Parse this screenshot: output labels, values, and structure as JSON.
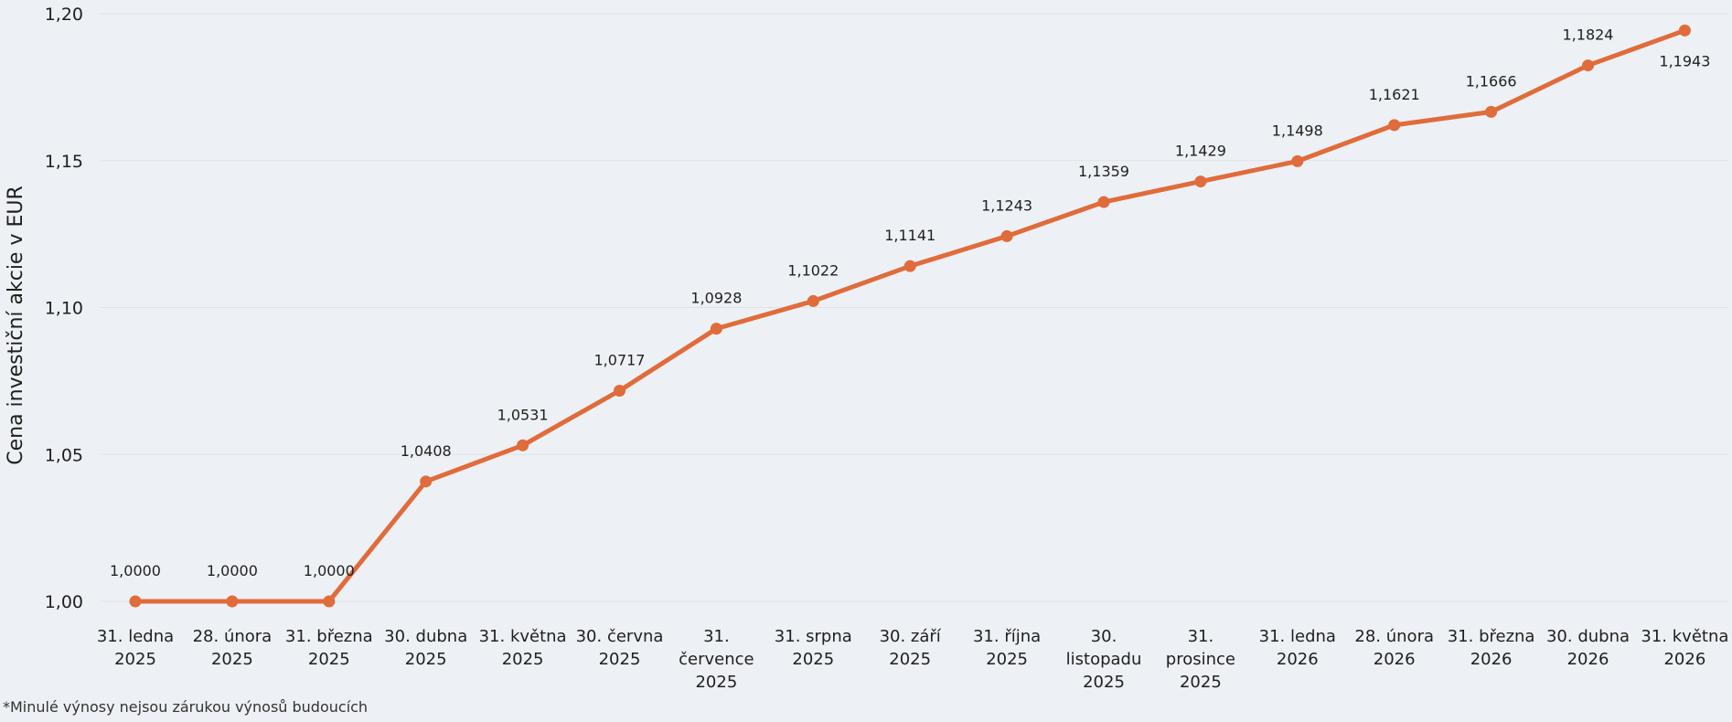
{
  "chart_data": {
    "type": "line",
    "title": "",
    "ylabel": "Cena investiční akcie v EUR",
    "xlabel": "",
    "ylim": [
      1.0,
      1.2
    ],
    "yticks": [
      "1,00",
      "1,05",
      "1,10",
      "1,15",
      "1,20"
    ],
    "yticks_values": [
      1.0,
      1.05,
      1.1,
      1.15,
      1.2
    ],
    "grid": true,
    "legend": "none",
    "categories": [
      "31. ledna 2025",
      "28. února 2025",
      "31. března 2025",
      "30. dubna 2025",
      "31. května 2025",
      "30. června 2025",
      "31. července 2025",
      "31. srpna 2025",
      "30. září 2025",
      "31. října 2025",
      "30. listopadu 2025",
      "31. prosince 2025",
      "31. ledna 2026",
      "28. února 2026",
      "31. března 2026",
      "30. dubna 2026",
      "31. května 2026"
    ],
    "category_lines": [
      [
        "31. ledna",
        "2025"
      ],
      [
        "28. února",
        "2025"
      ],
      [
        "31. března",
        "2025"
      ],
      [
        "30. dubna",
        "2025"
      ],
      [
        "31. května",
        "2025"
      ],
      [
        "30. června",
        "2025"
      ],
      [
        "31.",
        "července",
        "2025"
      ],
      [
        "31. srpna",
        "2025"
      ],
      [
        "30. září",
        "2025"
      ],
      [
        "31. října",
        "2025"
      ],
      [
        "30.",
        "listopadu",
        "2025"
      ],
      [
        "31.",
        "prosince",
        "2025"
      ],
      [
        "31. ledna",
        "2026"
      ],
      [
        "28. února",
        "2026"
      ],
      [
        "31. března",
        "2026"
      ],
      [
        "30. dubna",
        "2026"
      ],
      [
        "31. května",
        "2026"
      ]
    ],
    "series": [
      {
        "values": [
          1.0,
          1.0,
          1.0,
          1.0408,
          1.0531,
          1.0717,
          1.0928,
          1.1022,
          1.1141,
          1.1243,
          1.1359,
          1.1429,
          1.1498,
          1.1621,
          1.1666,
          1.1824,
          1.1943
        ],
        "labels": [
          "1,0000",
          "1,0000",
          "1,0000",
          "1,0408",
          "1,0531",
          "1,0717",
          "1,0928",
          "1,1022",
          "1,1141",
          "1,1243",
          "1,1359",
          "1,1429",
          "1,1498",
          "1,1621",
          "1,1666",
          "1,1824",
          "1,1943"
        ],
        "color": "#e06b3b"
      }
    ]
  },
  "footnote": "*Minulé výnosy nejsou zárukou výnosů budoucích",
  "colors": {
    "background": "#edf0f4",
    "gridline": "#dfe3e8",
    "line": "#e06b3b"
  }
}
